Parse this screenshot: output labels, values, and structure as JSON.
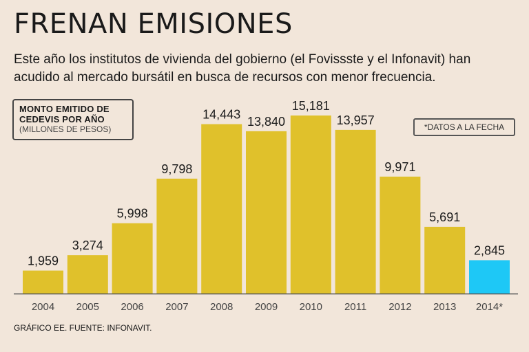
{
  "header": {
    "title": "FRENAN EMISIONES",
    "subtitle": "Este año los institutos de vivienda del gobierno (el Fovissste y el Infonavit) han acudido al mercado bursátil en busca de recursos con menor frecuencia."
  },
  "legend": {
    "title_line1": "MONTO EMITIDO DE",
    "title_line2": "CEDEVIS POR AÑO",
    "units": "(MILLONES DE PESOS)"
  },
  "note": "*DATOS A LA FECHA",
  "footer": {
    "source": "GRÁFICO EE. FUENTE: INFONAVIT."
  },
  "chart_data": {
    "type": "bar",
    "title": "MONTO EMITIDO DE CEDEVIS POR AÑO",
    "ylabel": "(MILLONES DE PESOS)",
    "xlabel": "",
    "categories": [
      "2004",
      "2005",
      "2006",
      "2007",
      "2008",
      "2009",
      "2010",
      "2011",
      "2012",
      "2013",
      "2014*"
    ],
    "values": [
      1959,
      3274,
      5998,
      9798,
      14443,
      13840,
      15181,
      13957,
      9971,
      5691,
      2845
    ],
    "labels": [
      "1,959",
      "3,274",
      "5,998",
      "9,798",
      "14,443",
      "13,840",
      "15,181",
      "13,957",
      "9,971",
      "5,691",
      "2,845"
    ],
    "ylim": [
      0,
      15181
    ],
    "grid": false,
    "colors": {
      "default": "#e0c12b",
      "highlight": "#1ec8f6",
      "axis": "#555555"
    },
    "highlight_category": "2014*"
  }
}
